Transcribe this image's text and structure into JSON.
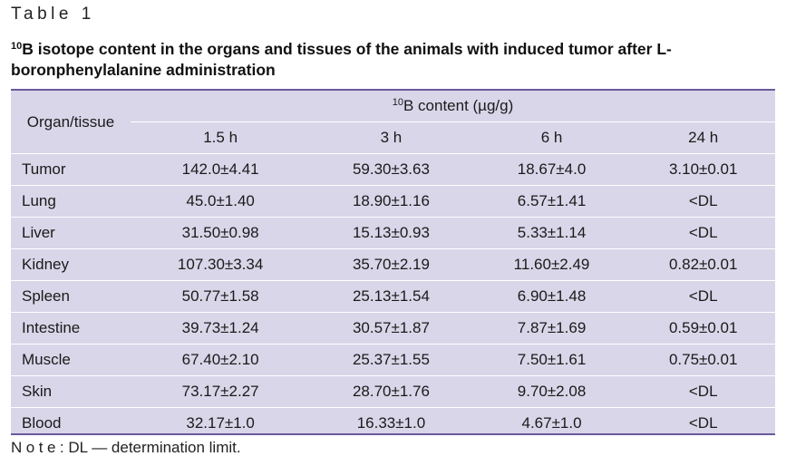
{
  "label": "Table 1",
  "title": {
    "sup": "10",
    "text": "B isotope content in the organs and tissues of the animals with induced tumor after L-boronphenylalanine administration"
  },
  "table": {
    "organ_header": "Organ/tissue",
    "group_header_sup": "10",
    "group_header": "B content (µg/g)",
    "columns": [
      "1.5 h",
      "3 h",
      "6 h",
      "24 h"
    ],
    "rows": [
      {
        "organ": "Tumor",
        "values": [
          "142.0±4.41",
          "59.30±3.63",
          "18.67±4.0",
          "3.10±0.01"
        ]
      },
      {
        "organ": "Lung",
        "values": [
          "45.0±1.40",
          "18.90±1.16",
          "6.57±1.41",
          "<DL"
        ]
      },
      {
        "organ": "Liver",
        "values": [
          "31.50±0.98",
          "15.13±0.93",
          "5.33±1.14",
          "<DL"
        ]
      },
      {
        "organ": "Kidney",
        "values": [
          "107.30±3.34",
          "35.70±2.19",
          "11.60±2.49",
          "0.82±0.01"
        ]
      },
      {
        "organ": "Spleen",
        "values": [
          "50.77±1.58",
          "25.13±1.54",
          "6.90±1.48",
          "<DL"
        ]
      },
      {
        "organ": "Intestine",
        "values": [
          "39.73±1.24",
          "30.57±1.87",
          "7.87±1.69",
          "0.59±0.01"
        ]
      },
      {
        "organ": "Muscle",
        "values": [
          "67.40±2.10",
          "25.37±1.55",
          "7.50±1.61",
          "0.75±0.01"
        ]
      },
      {
        "organ": "Skin",
        "values": [
          "73.17±2.27",
          "28.70±1.76",
          "9.70±2.08",
          "<DL"
        ]
      },
      {
        "organ": "Blood",
        "values": [
          "32.17±1.0",
          "16.33±1.0",
          "4.67±1.0",
          "<DL"
        ]
      }
    ]
  },
  "note": {
    "lead": "Note",
    "text": ": DL — determination limit."
  },
  "colors": {
    "table_background": "#d9d6e9",
    "rule": "#6a5a9a"
  }
}
